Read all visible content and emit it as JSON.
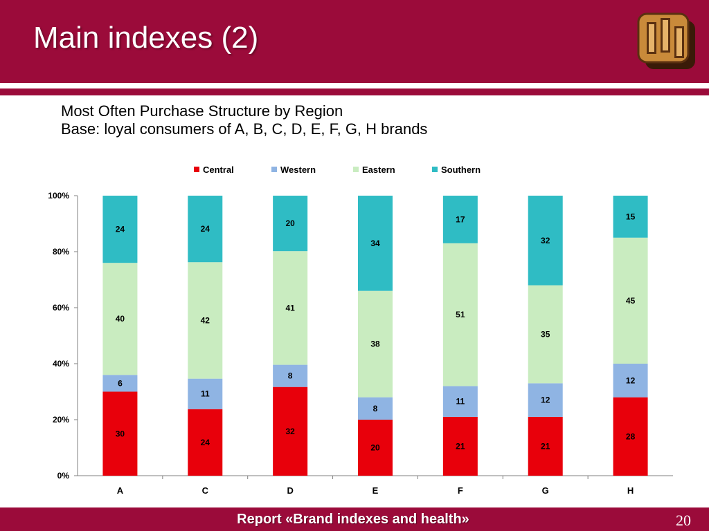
{
  "title": "Main indexes (2)",
  "subtitle_line1": "Most Often Purchase Structure by Region",
  "subtitle_line2": "Base: loyal consumers of A, B, C, D, E, F, G, H brands",
  "footer": "Report «Brand indexes and health»",
  "page_number": "20",
  "colors": {
    "header_bg": "#9b0b3a",
    "central": "#e8000b",
    "western": "#8fb4e3",
    "eastern": "#c9ecc0",
    "southern": "#2fbcc4"
  },
  "chart_data": {
    "type": "bar",
    "stacked": true,
    "percent_stacked": true,
    "categories": [
      "A",
      "C",
      "D",
      "E",
      "F",
      "G",
      "H"
    ],
    "series": [
      {
        "name": "Central",
        "values": [
          30,
          24,
          32,
          20,
          21,
          21,
          28
        ]
      },
      {
        "name": "Western",
        "values": [
          6,
          11,
          8,
          8,
          11,
          12,
          12
        ]
      },
      {
        "name": "Eastern",
        "values": [
          40,
          42,
          41,
          38,
          51,
          35,
          45
        ]
      },
      {
        "name": "Southern",
        "values": [
          24,
          24,
          20,
          34,
          17,
          32,
          15
        ]
      }
    ],
    "y_ticks": [
      "0%",
      "20%",
      "40%",
      "60%",
      "80%",
      "100%"
    ],
    "ylim": [
      0,
      100
    ],
    "legend_position": "top",
    "grid": false
  }
}
